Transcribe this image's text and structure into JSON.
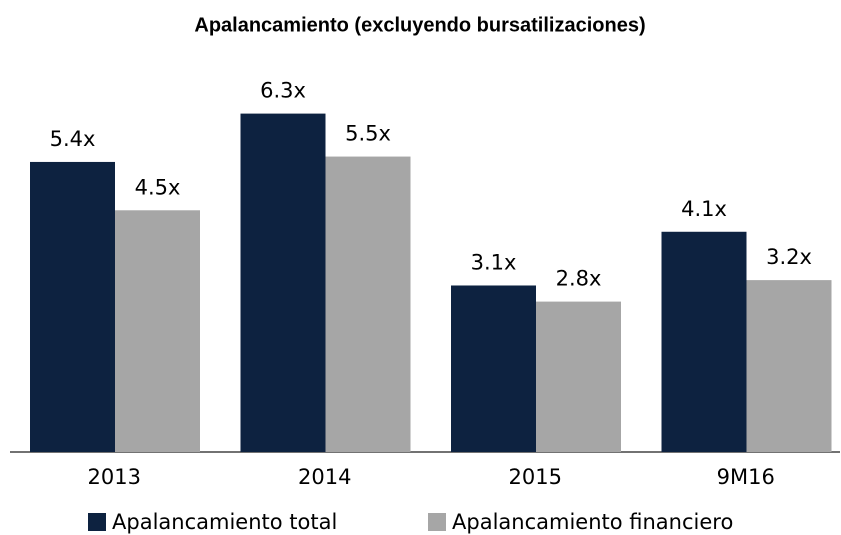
{
  "chart_data": {
    "type": "bar",
    "title": "Apalancamiento (excluyendo bursatilizaciones)",
    "categories": [
      "2013",
      "2014",
      "2015",
      "9M16"
    ],
    "series": [
      {
        "name": "Apalancamiento total",
        "color": "#0d2240",
        "values": [
          5.4,
          6.3,
          3.1,
          4.1
        ],
        "value_labels": [
          "5.4x",
          "6.3x",
          "3.1x",
          "4.1x"
        ]
      },
      {
        "name": "Apalancamiento financiero",
        "color": "#a6a6a6",
        "values": [
          4.5,
          5.5,
          2.8,
          3.2
        ],
        "value_labels": [
          "4.5x",
          "5.5x",
          "2.8x",
          "3.2x"
        ]
      }
    ],
    "ylim": [
      0,
      7
    ]
  }
}
